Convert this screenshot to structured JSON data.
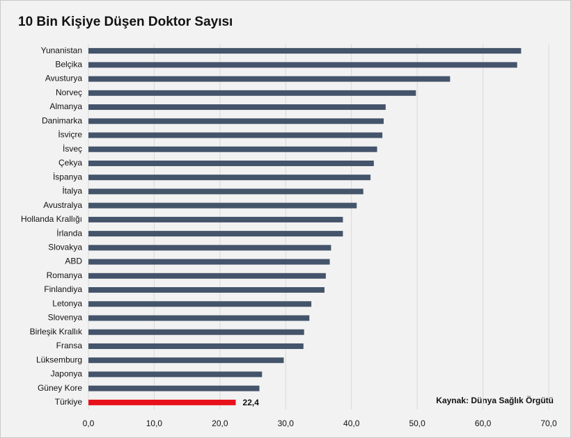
{
  "chart_data": {
    "type": "barh",
    "title": "10 Bin Kişiye Düşen Doktor Sayısı",
    "annotation": "Kaynak: Dünya Sağlık Örgütü",
    "categories": [
      "Yunanistan",
      "Belçika",
      "Avusturya",
      "Norveç",
      "Almanya",
      "Danimarka",
      "İsviçre",
      "İsveç",
      "Çekya",
      "İspanya",
      "İtalya",
      "Avustralya",
      "Hollanda Krallığı",
      "İrlanda",
      "Slovakya",
      "ABD",
      "Romanya",
      "Finlandiya",
      "Letonya",
      "Slovenya",
      "Birleşik Krallık",
      "Fransa",
      "Lüksemburg",
      "Japonya",
      "Güney Kore",
      "Türkiye"
    ],
    "values": [
      65.8,
      65.2,
      55.0,
      49.8,
      45.2,
      44.9,
      44.7,
      43.9,
      43.4,
      42.9,
      41.8,
      40.8,
      38.7,
      38.7,
      36.9,
      36.7,
      36.1,
      35.9,
      33.9,
      33.6,
      32.8,
      32.7,
      29.7,
      26.4,
      26.0,
      22.4
    ],
    "value_labels": [
      null,
      null,
      null,
      null,
      null,
      null,
      null,
      null,
      null,
      null,
      null,
      null,
      null,
      null,
      null,
      null,
      null,
      null,
      null,
      null,
      null,
      null,
      null,
      null,
      null,
      "22,4"
    ],
    "colors": [
      "#44546a",
      "#44546a",
      "#44546a",
      "#44546a",
      "#44546a",
      "#44546a",
      "#44546a",
      "#44546a",
      "#44546a",
      "#44546a",
      "#44546a",
      "#44546a",
      "#44546a",
      "#44546a",
      "#44546a",
      "#44546a",
      "#44546a",
      "#44546a",
      "#44546a",
      "#44546a",
      "#44546a",
      "#44546a",
      "#44546a",
      "#44546a",
      "#44546a",
      "#e8101a"
    ],
    "xlim": [
      0,
      70
    ],
    "xticks": [
      {
        "value": 0,
        "label": "0,0"
      },
      {
        "value": 10,
        "label": "10,0"
      },
      {
        "value": 20,
        "label": "20,0"
      },
      {
        "value": 30,
        "label": "30,0"
      },
      {
        "value": 40,
        "label": "40,0"
      },
      {
        "value": 50,
        "label": "50,0"
      },
      {
        "value": 60,
        "label": "60,0"
      },
      {
        "value": 70,
        "label": "70,0"
      }
    ],
    "grid": true
  }
}
